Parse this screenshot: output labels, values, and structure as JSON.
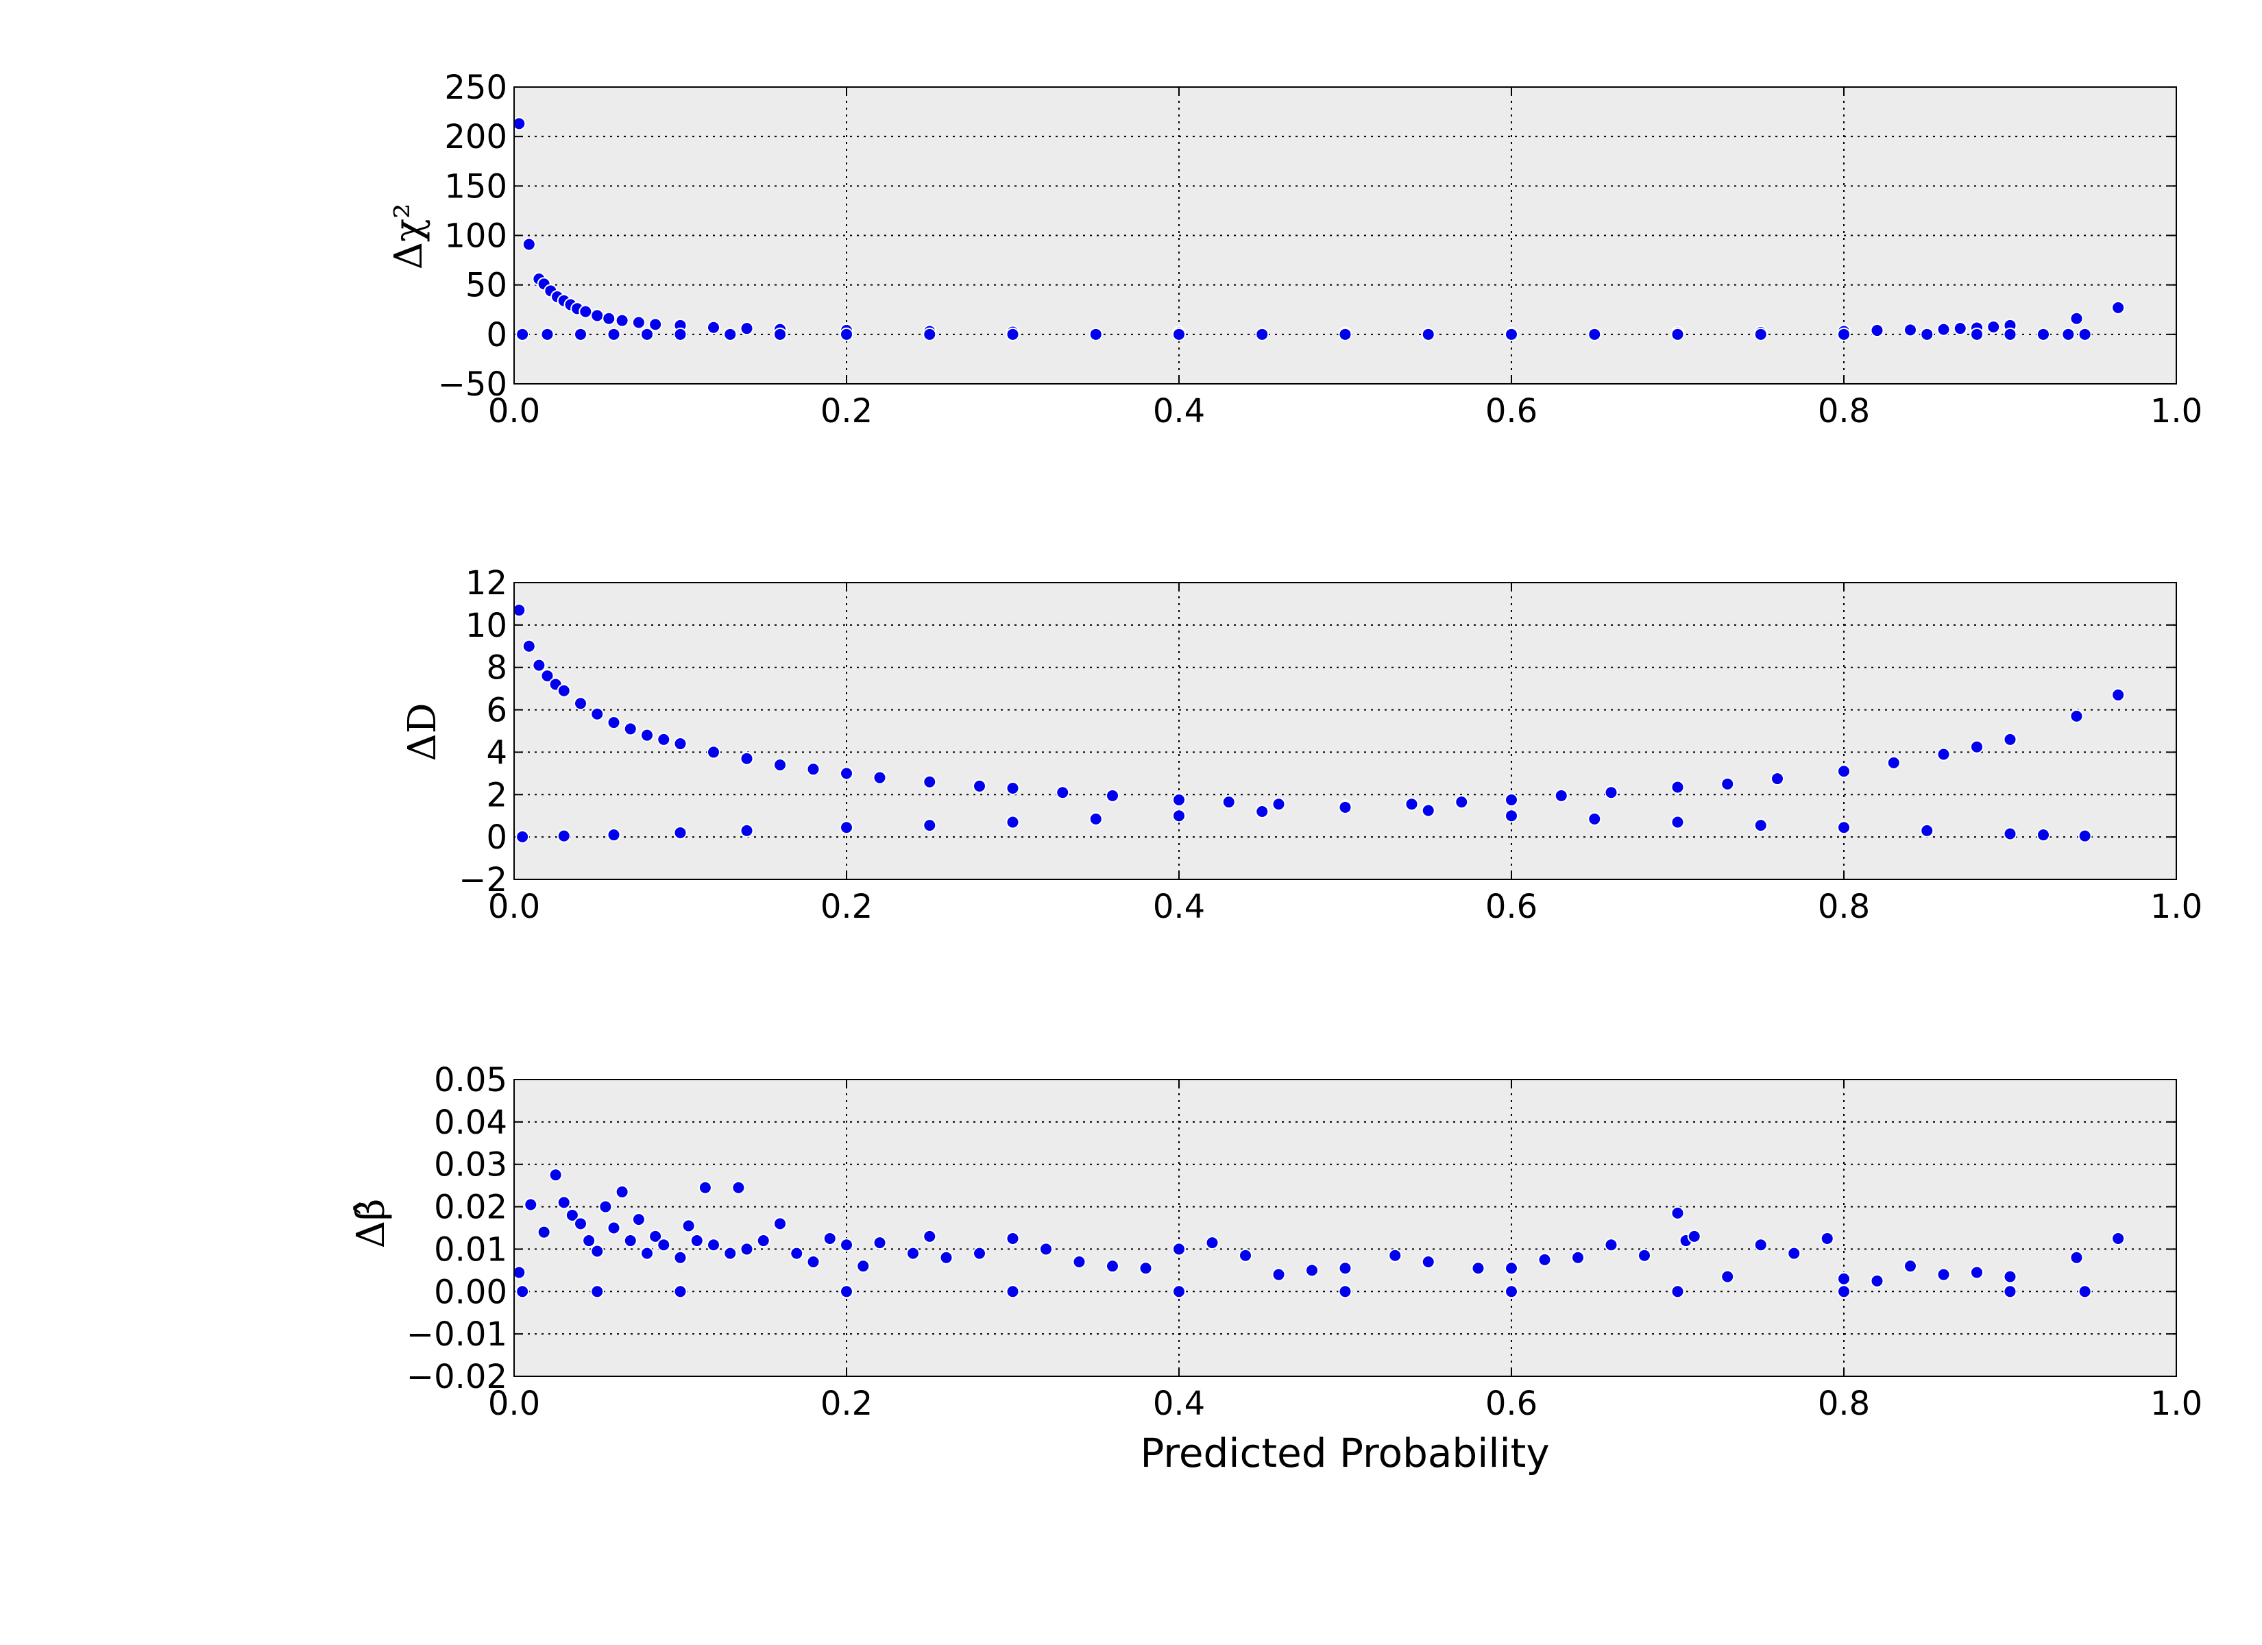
{
  "chart_data": [
    {
      "type": "scatter",
      "ylabel": "Δχ²",
      "xlabel": "",
      "xlim": [
        0.0,
        1.0
      ],
      "ylim": [
        -50,
        250
      ],
      "xticks": [
        "0.0",
        "0.2",
        "0.4",
        "0.6",
        "0.8",
        "1.0"
      ],
      "yticks": [
        "−50",
        "0",
        "50",
        "100",
        "150",
        "200",
        "250"
      ],
      "grid": true,
      "background": "#ececec",
      "marker_color": "#0000ee",
      "series": [
        {
          "values_x": [
            0.003,
            0.009,
            0.015,
            0.018,
            0.022,
            0.026,
            0.03,
            0.034,
            0.038,
            0.043,
            0.05,
            0.057,
            0.065,
            0.075,
            0.085,
            0.1,
            0.12,
            0.14,
            0.16,
            0.2,
            0.25,
            0.3,
            0.4,
            0.5,
            0.6,
            0.7,
            0.75,
            0.8,
            0.82,
            0.84,
            0.86,
            0.87,
            0.88,
            0.89,
            0.9,
            0.94,
            0.965,
            0.005,
            0.02,
            0.04,
            0.06,
            0.08,
            0.1,
            0.13,
            0.16,
            0.2,
            0.25,
            0.3,
            0.35,
            0.4,
            0.45,
            0.5,
            0.55,
            0.6,
            0.65,
            0.7,
            0.75,
            0.8,
            0.85,
            0.88,
            0.9,
            0.92,
            0.935,
            0.945
          ],
          "values_y": [
            213,
            91,
            56,
            51,
            44,
            38,
            34,
            30,
            26,
            23,
            19,
            16,
            14,
            12,
            10,
            9,
            7,
            6,
            5,
            4,
            3,
            2.3,
            1.5,
            1.0,
            0.7,
            1.5,
            2,
            3,
            4,
            4.5,
            5,
            6,
            6.5,
            7.5,
            9,
            16,
            27,
            0,
            0,
            0,
            0,
            0,
            0,
            0,
            0,
            0,
            0,
            0,
            0,
            0,
            0,
            0,
            0,
            0,
            0,
            0,
            0,
            0,
            0,
            0,
            0,
            0,
            0,
            0
          ]
        }
      ]
    },
    {
      "type": "scatter",
      "ylabel": "ΔD",
      "xlabel": "",
      "xlim": [
        0.0,
        1.0
      ],
      "ylim": [
        -2,
        12
      ],
      "xticks": [
        "0.0",
        "0.2",
        "0.4",
        "0.6",
        "0.8",
        "1.0"
      ],
      "yticks": [
        "−2",
        "0",
        "2",
        "4",
        "6",
        "8",
        "10",
        "12"
      ],
      "grid": true,
      "background": "#ececec",
      "marker_color": "#0000ee",
      "series": [
        {
          "values_x": [
            0.003,
            0.009,
            0.015,
            0.02,
            0.025,
            0.03,
            0.04,
            0.05,
            0.06,
            0.07,
            0.08,
            0.09,
            0.1,
            0.12,
            0.14,
            0.16,
            0.18,
            0.2,
            0.22,
            0.25,
            0.28,
            0.3,
            0.33,
            0.36,
            0.4,
            0.43,
            0.46,
            0.5,
            0.54,
            0.57,
            0.6,
            0.63,
            0.66,
            0.7,
            0.73,
            0.76,
            0.8,
            0.83,
            0.86,
            0.88,
            0.9,
            0.94,
            0.965,
            0.005,
            0.03,
            0.06,
            0.1,
            0.14,
            0.2,
            0.25,
            0.3,
            0.35,
            0.4,
            0.45,
            0.5,
            0.55,
            0.6,
            0.65,
            0.7,
            0.75,
            0.8,
            0.85,
            0.9,
            0.92,
            0.945
          ],
          "values_y": [
            10.7,
            9.0,
            8.1,
            7.6,
            7.2,
            6.9,
            6.3,
            5.8,
            5.4,
            5.1,
            4.8,
            4.6,
            4.4,
            4.0,
            3.7,
            3.4,
            3.2,
            3.0,
            2.8,
            2.6,
            2.4,
            2.3,
            2.1,
            1.95,
            1.75,
            1.65,
            1.55,
            1.45,
            1.55,
            1.65,
            1.75,
            1.95,
            2.1,
            2.35,
            2.5,
            2.75,
            3.1,
            3.5,
            3.9,
            4.25,
            4.6,
            5.7,
            6.7,
            0.01,
            0.05,
            0.1,
            0.2,
            0.3,
            0.45,
            0.55,
            0.7,
            0.85,
            1.0,
            1.2,
            1.4,
            1.25,
            1.0,
            0.85,
            0.7,
            0.55,
            0.45,
            0.3,
            0.15,
            0.1,
            0.05
          ]
        }
      ]
    },
    {
      "type": "scatter",
      "ylabel": "Δβ̂",
      "xlabel": "Predicted Probability",
      "xlim": [
        0.0,
        1.0
      ],
      "ylim": [
        -0.02,
        0.05
      ],
      "xticks": [
        "0.0",
        "0.2",
        "0.4",
        "0.6",
        "0.8",
        "1.0"
      ],
      "yticks": [
        "−0.02",
        "−0.01",
        "0.00",
        "0.01",
        "0.02",
        "0.03",
        "0.04",
        "0.05"
      ],
      "grid": true,
      "background": "#ececec",
      "marker_color": "#0000ee",
      "series": [
        {
          "values_x": [
            0.003,
            0.01,
            0.018,
            0.025,
            0.03,
            0.035,
            0.04,
            0.045,
            0.05,
            0.055,
            0.06,
            0.065,
            0.07,
            0.075,
            0.08,
            0.085,
            0.09,
            0.1,
            0.105,
            0.11,
            0.115,
            0.12,
            0.13,
            0.135,
            0.14,
            0.15,
            0.16,
            0.17,
            0.18,
            0.19,
            0.2,
            0.21,
            0.22,
            0.24,
            0.25,
            0.26,
            0.28,
            0.3,
            0.32,
            0.34,
            0.36,
            0.38,
            0.4,
            0.42,
            0.44,
            0.46,
            0.48,
            0.5,
            0.53,
            0.55,
            0.58,
            0.6,
            0.62,
            0.64,
            0.66,
            0.68,
            0.7,
            0.705,
            0.71,
            0.73,
            0.75,
            0.77,
            0.79,
            0.8,
            0.82,
            0.84,
            0.86,
            0.88,
            0.9,
            0.94,
            0.965,
            0.005,
            0.05,
            0.1,
            0.2,
            0.3,
            0.4,
            0.5,
            0.6,
            0.7,
            0.8,
            0.9,
            0.945
          ],
          "values_y": [
            0.0045,
            0.0205,
            0.014,
            0.0275,
            0.021,
            0.018,
            0.016,
            0.012,
            0.0095,
            0.02,
            0.015,
            0.0235,
            0.012,
            0.017,
            0.009,
            0.013,
            0.011,
            0.008,
            0.0155,
            0.012,
            0.0245,
            0.011,
            0.009,
            0.0245,
            0.01,
            0.012,
            0.016,
            0.009,
            0.007,
            0.0125,
            0.011,
            0.006,
            0.0115,
            0.009,
            0.013,
            0.008,
            0.009,
            0.0125,
            0.01,
            0.007,
            0.006,
            0.0055,
            0.01,
            0.0115,
            0.0085,
            0.004,
            0.005,
            0.0055,
            0.0085,
            0.007,
            0.0055,
            0.0055,
            0.0075,
            0.008,
            0.011,
            0.0085,
            0.0185,
            0.012,
            0.013,
            0.0035,
            0.011,
            0.009,
            0.0125,
            0.003,
            0.0025,
            0.006,
            0.004,
            0.0045,
            0.0035,
            0.008,
            0.0125,
            0,
            0,
            0,
            0,
            0,
            0,
            0,
            0,
            0,
            0,
            0,
            0
          ]
        }
      ]
    }
  ]
}
